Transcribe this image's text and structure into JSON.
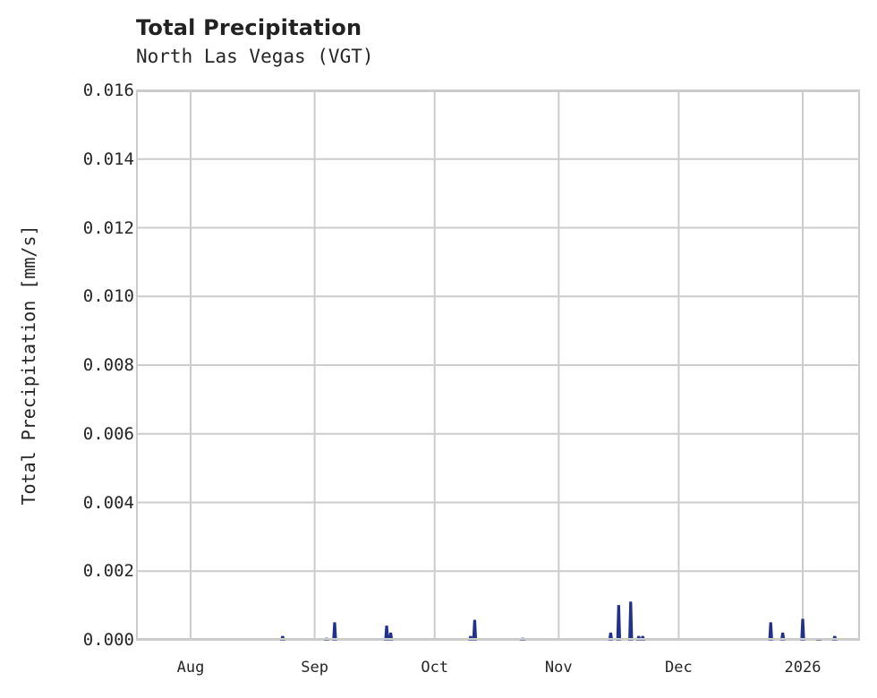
{
  "chart_data": {
    "type": "area",
    "title": "Total Precipitation",
    "subtitle": "North Las Vegas (VGT)",
    "xlabel": "",
    "ylabel": "Total Precipitation [mm/s]",
    "ylim": [
      0,
      0.016
    ],
    "y_ticks": [
      "0.000",
      "0.002",
      "0.004",
      "0.006",
      "0.008",
      "0.010",
      "0.012",
      "0.014",
      "0.016"
    ],
    "x_ticks": [
      "Aug",
      "Sep",
      "Oct",
      "Nov",
      "Dec",
      "2026"
    ],
    "grid": true,
    "legend": null,
    "color": "#22318a",
    "series": [
      {
        "name": "Total Precipitation",
        "points": [
          {
            "date": "2025-08-24",
            "value": 0.0001
          },
          {
            "date": "2025-09-04",
            "value": 5e-05
          },
          {
            "date": "2025-09-06",
            "value": 0.0005
          },
          {
            "date": "2025-09-19",
            "value": 0.0004
          },
          {
            "date": "2025-09-20",
            "value": 0.0002
          },
          {
            "date": "2025-10-10",
            "value": 0.0001
          },
          {
            "date": "2025-10-11",
            "value": 0.00057
          },
          {
            "date": "2025-10-23",
            "value": 5e-05
          },
          {
            "date": "2025-11-14",
            "value": 0.0002
          },
          {
            "date": "2025-11-16",
            "value": 0.001
          },
          {
            "date": "2025-11-19",
            "value": 0.0011
          },
          {
            "date": "2025-11-21",
            "value": 0.0001
          },
          {
            "date": "2025-11-22",
            "value": 0.0001
          },
          {
            "date": "2025-12-24",
            "value": 0.0005
          },
          {
            "date": "2025-12-27",
            "value": 0.0002
          },
          {
            "date": "2026-01-01",
            "value": 0.0006
          },
          {
            "date": "2026-01-05",
            "value": 3e-05
          },
          {
            "date": "2026-01-09",
            "value": 0.0001
          }
        ]
      }
    ]
  }
}
